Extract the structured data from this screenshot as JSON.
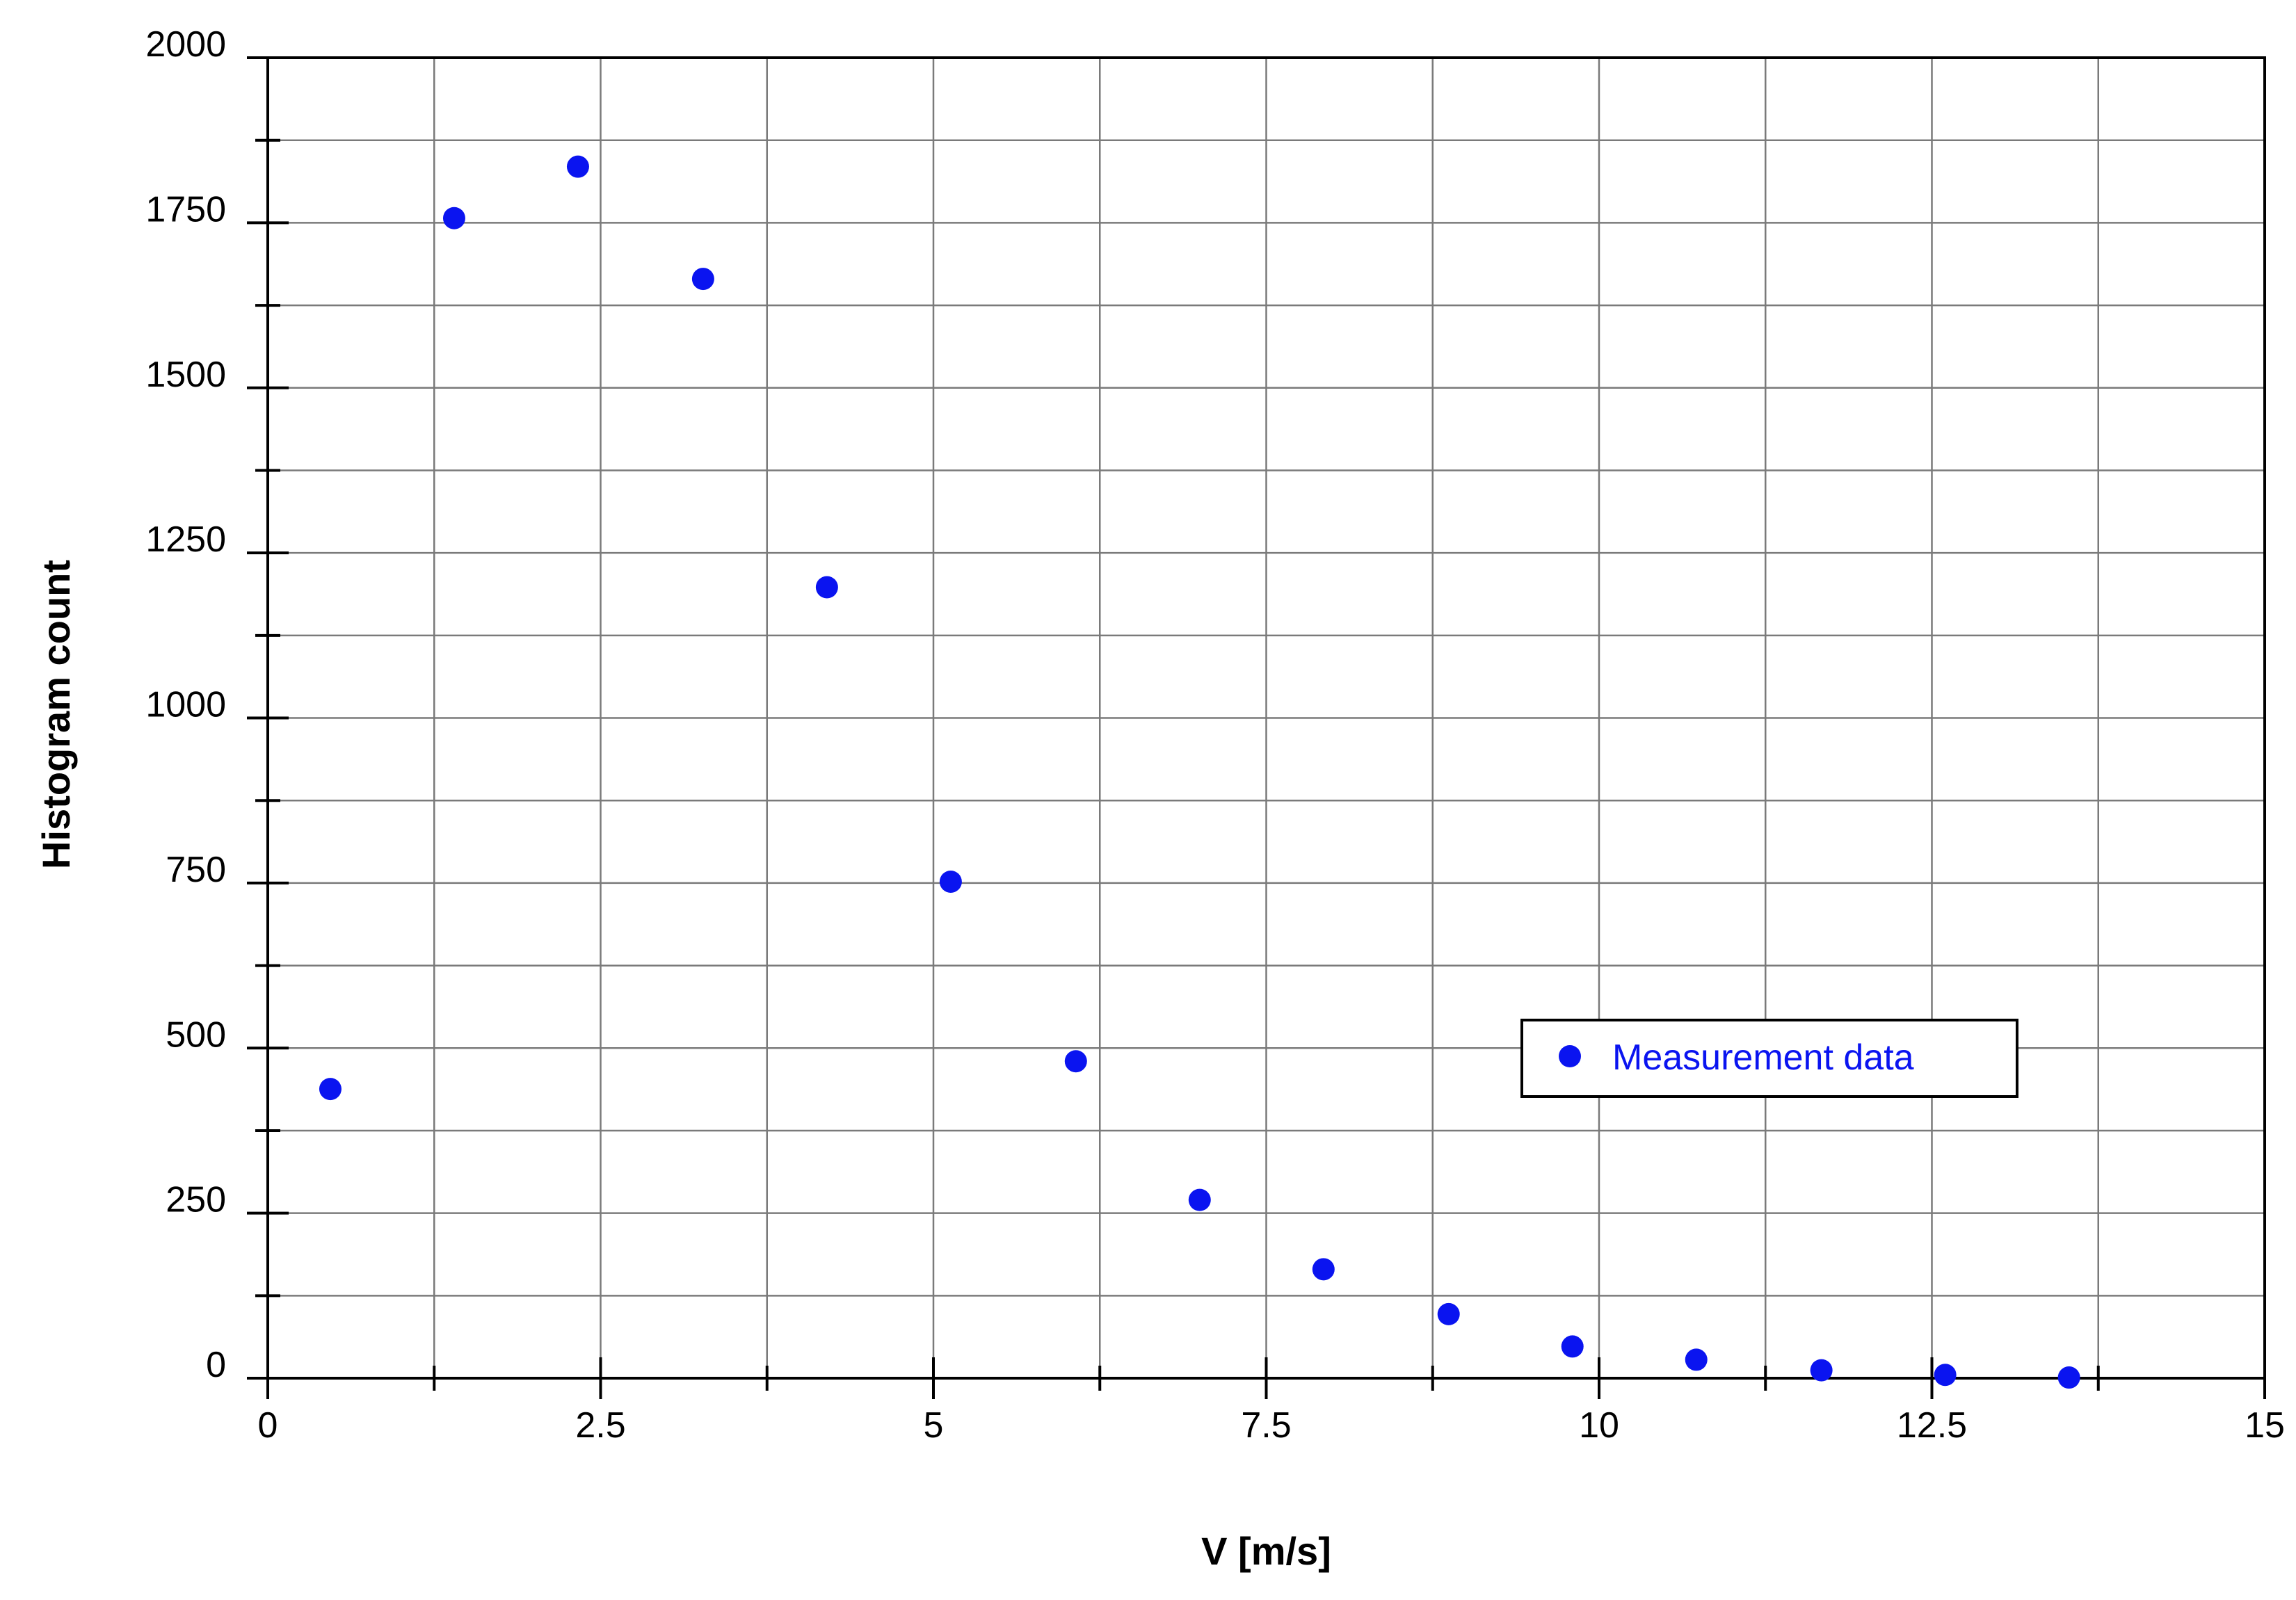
{
  "chart_data": {
    "type": "scatter",
    "title": "",
    "xlabel": "V [m/s]",
    "ylabel": "Histogram count",
    "xlim": [
      0,
      15
    ],
    "ylim": [
      0,
      2000
    ],
    "x_ticks": [
      0,
      2.5,
      5,
      7.5,
      10,
      12.5,
      15
    ],
    "x_tick_labels": [
      "0",
      "2.5",
      "5",
      "7.5",
      "10",
      "12.5",
      "15"
    ],
    "y_ticks": [
      0,
      250,
      500,
      750,
      1000,
      1250,
      1500,
      1750,
      2000
    ],
    "y_tick_labels": [
      "0",
      "250",
      "500",
      "750",
      "1000",
      "1250",
      "1500",
      "1750",
      "2000"
    ],
    "grid": true,
    "legend_position": "center-right",
    "series": [
      {
        "name": "Measurement data",
        "color": "#0a14f0",
        "marker": "circle",
        "x": [
          0.47,
          1.4,
          2.33,
          3.27,
          4.2,
          5.13,
          6.07,
          7.0,
          7.93,
          8.87,
          9.8,
          10.73,
          11.67,
          12.6,
          13.53
        ],
        "y": [
          438,
          1757,
          1835,
          1665,
          1198,
          752,
          480,
          270,
          165,
          97,
          48,
          28,
          12,
          5,
          1
        ]
      }
    ]
  }
}
